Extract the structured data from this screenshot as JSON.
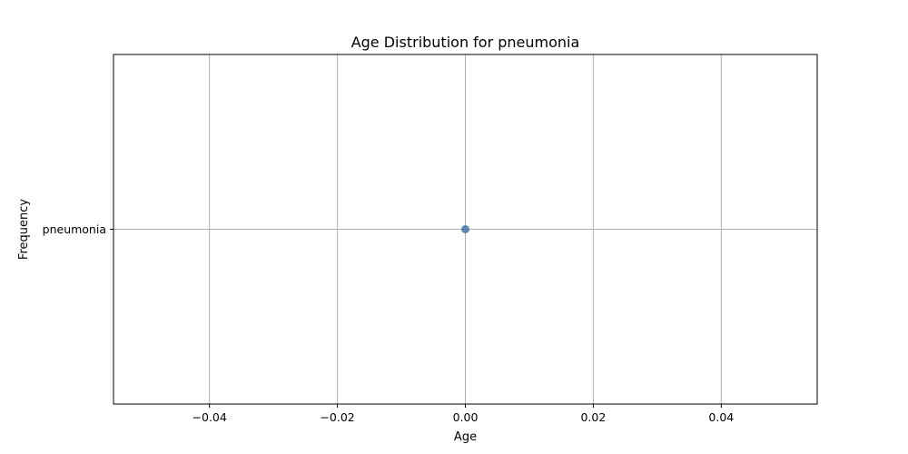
{
  "chart_data": {
    "type": "scatter",
    "title": "Age Distribution for pneumonia",
    "xlabel": "Age",
    "ylabel": "Frequency",
    "xlim": [
      -0.055,
      0.055
    ],
    "x_ticks": [
      -0.04,
      -0.02,
      0.0,
      0.02,
      0.04
    ],
    "x_tick_labels": [
      "−0.04",
      "−0.02",
      "0.00",
      "0.02",
      "0.04"
    ],
    "y_categories": [
      "pneumonia"
    ],
    "grid": true,
    "points": [
      {
        "x": 0.0,
        "y": "pneumonia"
      }
    ],
    "colors": {
      "marker": "#4a7fad",
      "grid": "#b0b0b0",
      "axes": "#000000"
    }
  }
}
